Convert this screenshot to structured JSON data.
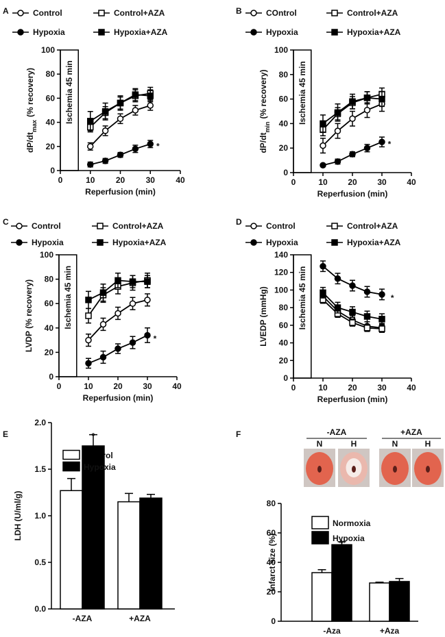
{
  "chart_data": [
    {
      "type": "line",
      "panel": "A",
      "xlabel": "Reperfusion (min)",
      "ylabel": {
        "text": "dP/dt",
        "sub": "max",
        "unit": "(% recovery)"
      },
      "xlim": [
        0,
        40
      ],
      "xticks": [
        0,
        10,
        20,
        30,
        40
      ],
      "ylim": [
        0,
        100
      ],
      "yticks": [
        0,
        20,
        40,
        60,
        80,
        100
      ],
      "ischemia": {
        "label": "Ischemia 45 min",
        "x": [
          0,
          6
        ]
      },
      "x": [
        10,
        15,
        20,
        25,
        30
      ],
      "series": [
        {
          "name": "Control",
          "color": "#000000",
          "marker": "circle",
          "filled": false,
          "values": [
            20,
            33,
            43,
            50,
            54
          ],
          "errors": [
            3,
            4,
            4,
            4,
            4
          ]
        },
        {
          "name": "Control+AZA",
          "color": "#000000",
          "marker": "square",
          "filled": false,
          "values": [
            36,
            48,
            56,
            62,
            64
          ],
          "errors": [
            4,
            5,
            5,
            5,
            5
          ]
        },
        {
          "name": "Hypoxia",
          "color": "#000000",
          "marker": "circle",
          "filled": true,
          "values": [
            5,
            8,
            13,
            18,
            22
          ],
          "errors": [
            2,
            2,
            2,
            3,
            3
          ]
        },
        {
          "name": "Hypoxia+AZA",
          "color": "#000000",
          "marker": "square",
          "filled": true,
          "values": [
            41,
            49,
            56,
            63,
            62
          ],
          "errors": [
            8,
            7,
            6,
            5,
            5
          ]
        }
      ],
      "annotations": [
        {
          "text": "*",
          "x": 32,
          "y": 23
        }
      ]
    },
    {
      "type": "line",
      "panel": "B",
      "xlabel": "Reperfusion (min)",
      "ylabel": {
        "text": "dP/dt",
        "sub": "min",
        "unit": "(% recovery)"
      },
      "xlim": [
        0,
        40
      ],
      "xticks": [
        0,
        10,
        20,
        30,
        40
      ],
      "ylim": [
        0,
        100
      ],
      "yticks": [
        0,
        20,
        40,
        60,
        80,
        100
      ],
      "ischemia": {
        "label": "Ischemia 45 min",
        "x": [
          0,
          6
        ]
      },
      "x": [
        10,
        15,
        20,
        25,
        30
      ],
      "series": [
        {
          "name": "COntrol",
          "color": "#000000",
          "marker": "circle",
          "filled": false,
          "values": [
            22,
            34,
            44,
            51,
            56
          ],
          "errors": [
            6,
            6,
            6,
            6,
            6
          ]
        },
        {
          "name": "Control+AZA",
          "color": "#000000",
          "marker": "square",
          "filled": false,
          "values": [
            35,
            48,
            57,
            61,
            64
          ],
          "errors": [
            5,
            5,
            5,
            5,
            5
          ]
        },
        {
          "name": "Hypoxia",
          "color": "#000000",
          "marker": "circle",
          "filled": true,
          "values": [
            6,
            9,
            15,
            20,
            25
          ],
          "errors": [
            1,
            2,
            2,
            3,
            4
          ]
        },
        {
          "name": "Hypoxia+AZA",
          "color": "#000000",
          "marker": "square",
          "filled": true,
          "values": [
            40,
            49,
            58,
            61,
            60
          ],
          "errors": [
            7,
            7,
            6,
            5,
            6
          ]
        }
      ],
      "annotations": [
        {
          "text": "*",
          "x": 32,
          "y": 26
        }
      ]
    },
    {
      "type": "line",
      "panel": "C",
      "xlabel": "Reperfusion (min)",
      "ylabel": "LVDP  (% recovery)",
      "xlim": [
        0,
        40
      ],
      "xticks": [
        0,
        10,
        20,
        30,
        40
      ],
      "ylim": [
        0,
        100
      ],
      "yticks": [
        0,
        20,
        40,
        60,
        80,
        100
      ],
      "ischemia": {
        "label": "Ischemia 45 min",
        "x": [
          0,
          6
        ]
      },
      "x": [
        10,
        15,
        20,
        25,
        30
      ],
      "series": [
        {
          "name": "Control",
          "color": "#000000",
          "marker": "circle",
          "filled": false,
          "values": [
            30,
            43,
            52,
            60,
            63
          ],
          "errors": [
            5,
            5,
            5,
            5,
            5
          ]
        },
        {
          "name": "Control+AZA",
          "color": "#000000",
          "marker": "square",
          "filled": false,
          "values": [
            50,
            67,
            74,
            77,
            79
          ],
          "errors": [
            6,
            6,
            6,
            6,
            6
          ]
        },
        {
          "name": "Hypoxia",
          "color": "#000000",
          "marker": "circle",
          "filled": true,
          "values": [
            11,
            16,
            23,
            28,
            34
          ],
          "errors": [
            4,
            5,
            4,
            5,
            6
          ]
        },
        {
          "name": "Hypoxia+AZA",
          "color": "#000000",
          "marker": "square",
          "filled": true,
          "values": [
            63,
            69,
            79,
            78,
            78
          ],
          "errors": [
            7,
            7,
            6,
            5,
            5
          ]
        }
      ],
      "annotations": [
        {
          "text": "*",
          "x": 32,
          "y": 34
        }
      ]
    },
    {
      "type": "line",
      "panel": "D",
      "xlabel": "Reperfusion (min)",
      "ylabel": "LVEDP  (mmHg)",
      "xlim": [
        0,
        40
      ],
      "xticks": [
        0,
        10,
        20,
        30,
        40
      ],
      "ylim": [
        0,
        140
      ],
      "yticks": [
        0,
        20,
        40,
        60,
        80,
        100,
        120,
        140
      ],
      "ischemia": {
        "label": "Ischemia 45 min",
        "x": [
          0,
          6
        ]
      },
      "x": [
        10,
        15,
        20,
        25,
        30
      ],
      "series": [
        {
          "name": "Control",
          "color": "#000000",
          "marker": "circle",
          "filled": false,
          "values": [
            93,
            76,
            66,
            59,
            57
          ],
          "errors": [
            5,
            5,
            5,
            5,
            5
          ]
        },
        {
          "name": "Control+AZA",
          "color": "#000000",
          "marker": "square",
          "filled": false,
          "values": [
            89,
            73,
            63,
            57,
            56
          ],
          "errors": [
            4,
            4,
            4,
            4,
            4
          ]
        },
        {
          "name": "Hypoxia",
          "color": "#000000",
          "marker": "circle",
          "filled": true,
          "values": [
            127,
            113,
            105,
            98,
            95
          ],
          "errors": [
            6,
            6,
            6,
            6,
            6
          ]
        },
        {
          "name": "Hypoxia+AZA",
          "color": "#000000",
          "marker": "square",
          "filled": true,
          "values": [
            97,
            80,
            75,
            70,
            67
          ],
          "errors": [
            6,
            6,
            6,
            6,
            6
          ]
        }
      ],
      "annotations": [
        {
          "text": "*",
          "x": 33,
          "y": 95
        }
      ]
    },
    {
      "type": "bar",
      "panel": "E",
      "ylabel": "LDH (U/ml/g)",
      "categories": [
        "-AZA",
        "+AZA"
      ],
      "ylim": [
        0,
        2
      ],
      "yticks": [
        {
          "value": 0,
          "label": "0.0"
        },
        {
          "value": 0.5,
          "label": "0.5"
        },
        {
          "value": 1,
          "label": "1.0"
        },
        {
          "value": 1.5,
          "label": "1.5"
        },
        {
          "value": 2,
          "label": "2.0"
        }
      ],
      "series": [
        {
          "name": "Control",
          "color": "#ffffff",
          "values": [
            1.27,
            1.15
          ],
          "errors": [
            0.13,
            0.09
          ]
        },
        {
          "name": "Hypoxia",
          "color": "#000000",
          "values": [
            1.75,
            1.19
          ],
          "errors": [
            0.12,
            0.04
          ]
        }
      ],
      "annotations": [
        {
          "text": "*",
          "category": 0,
          "series": 1
        }
      ]
    },
    {
      "type": "bar",
      "panel": "F",
      "ylabel": "Infarct size (%)",
      "categories": [
        "-Aza",
        "+Aza"
      ],
      "ylim": [
        0,
        80
      ],
      "yticks": [
        0,
        20,
        40,
        60,
        80
      ],
      "images": [
        {
          "label": "-AZA",
          "columns": [
            "N",
            "H"
          ]
        },
        {
          "label": "+AZA",
          "columns": [
            "N",
            "H"
          ]
        }
      ],
      "series": [
        {
          "name": "Normoxia",
          "color": "#ffffff",
          "values": [
            33,
            26
          ],
          "errors": [
            2,
            0.5
          ]
        },
        {
          "name": "Hypoxia",
          "color": "#000000",
          "values": [
            52,
            27
          ],
          "errors": [
            2,
            2
          ]
        }
      ],
      "annotations": [
        {
          "text": "*",
          "category": 0,
          "series": 1
        }
      ]
    }
  ]
}
